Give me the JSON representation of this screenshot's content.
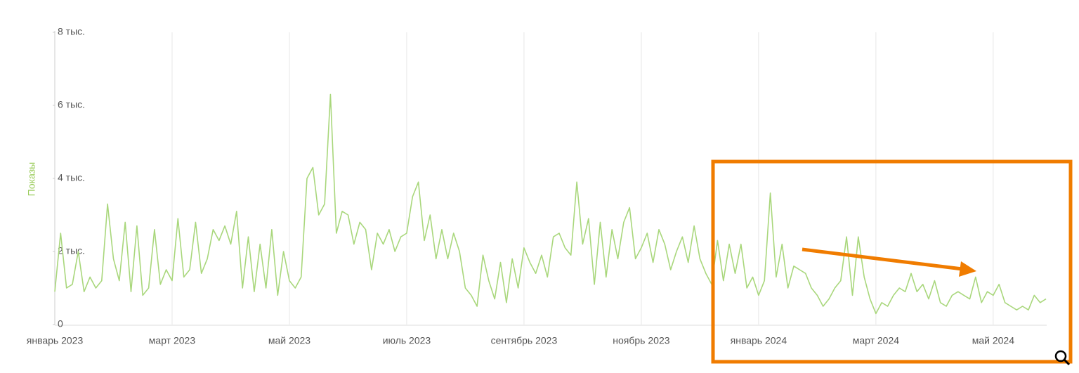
{
  "chart_data": {
    "type": "line",
    "y_label": "Показы",
    "ylim": [
      0,
      8000
    ],
    "yticks": [
      0,
      {
        "value": 2000,
        "label": "2 тыс."
      },
      {
        "value": 4000,
        "label": "4 тыс."
      },
      {
        "value": 6000,
        "label": "6 тыс."
      },
      {
        "value": 8000,
        "label": "8 тыс."
      }
    ],
    "grid": false,
    "x_grid": true,
    "categories": [
      "январь 2023",
      null,
      null,
      null,
      null,
      null,
      null,
      null,
      null,
      null,
      null,
      null,
      null,
      null,
      null,
      null,
      null,
      null,
      null,
      null,
      "март 2023",
      null,
      null,
      null,
      null,
      null,
      null,
      null,
      null,
      null,
      null,
      null,
      null,
      null,
      null,
      null,
      null,
      null,
      null,
      null,
      "май 2023",
      null,
      null,
      null,
      null,
      null,
      null,
      null,
      null,
      null,
      null,
      null,
      null,
      null,
      null,
      null,
      null,
      null,
      null,
      null,
      "июль 2023",
      null,
      null,
      null,
      null,
      null,
      null,
      null,
      null,
      null,
      null,
      null,
      null,
      null,
      null,
      null,
      null,
      null,
      null,
      null,
      "сентябрь 2023",
      null,
      null,
      null,
      null,
      null,
      null,
      null,
      null,
      null,
      null,
      null,
      null,
      null,
      null,
      null,
      null,
      null,
      null,
      null,
      "ноябрь 2023",
      null,
      null,
      null,
      null,
      null,
      null,
      null,
      null,
      null,
      null,
      null,
      null,
      null,
      null,
      null,
      null,
      null,
      null,
      null,
      "январь 2024",
      null,
      null,
      null,
      null,
      null,
      null,
      null,
      null,
      null,
      null,
      null,
      null,
      null,
      null,
      null,
      null,
      null,
      null,
      null,
      "март 2024",
      null,
      null,
      null,
      null,
      null,
      null,
      null,
      null,
      null,
      null,
      null,
      null,
      null,
      null,
      null,
      null,
      null,
      null,
      null,
      "май 2024",
      null,
      null,
      null,
      null,
      null,
      null,
      null,
      null,
      null
    ],
    "series": [
      {
        "name": "Показы",
        "color": "#a9d77c",
        "values": [
          900,
          2500,
          1000,
          1100,
          2000,
          900,
          1300,
          1000,
          1200,
          3300,
          1800,
          1200,
          2800,
          900,
          2700,
          800,
          1000,
          2600,
          1100,
          1500,
          1200,
          2900,
          1300,
          1500,
          2800,
          1400,
          1800,
          2600,
          2300,
          2700,
          2200,
          3100,
          1000,
          2400,
          900,
          2200,
          1000,
          2600,
          800,
          2000,
          1200,
          1000,
          1300,
          4000,
          4300,
          3000,
          3300,
          6300,
          2500,
          3100,
          3000,
          2200,
          2800,
          2600,
          1500,
          2500,
          2200,
          2600,
          2000,
          2400,
          2500,
          3500,
          3900,
          2300,
          3000,
          1800,
          2600,
          1800,
          2500,
          2000,
          1000,
          800,
          500,
          1900,
          1200,
          700,
          1700,
          600,
          1800,
          1000,
          2100,
          1700,
          1400,
          1900,
          1300,
          2400,
          2500,
          2100,
          1900,
          3900,
          2200,
          2900,
          1100,
          2800,
          1300,
          2600,
          1800,
          2800,
          3200,
          1800,
          2100,
          2500,
          1700,
          2600,
          2200,
          1500,
          2000,
          2400,
          1700,
          2700,
          1800,
          1400,
          1100,
          2300,
          1200,
          2200,
          1400,
          2200,
          1000,
          1300,
          800,
          1200,
          3600,
          1300,
          2200,
          1000,
          1600,
          1500,
          1400,
          1000,
          800,
          500,
          700,
          1000,
          1200,
          2400,
          800,
          2400,
          1300,
          700,
          300,
          600,
          500,
          800,
          1000,
          900,
          1400,
          900,
          1100,
          700,
          1200,
          600,
          500,
          800,
          900,
          800,
          700,
          1300,
          600,
          900,
          800,
          1100,
          600,
          500,
          400,
          500,
          400,
          800,
          600,
          700
        ]
      }
    ]
  }
}
